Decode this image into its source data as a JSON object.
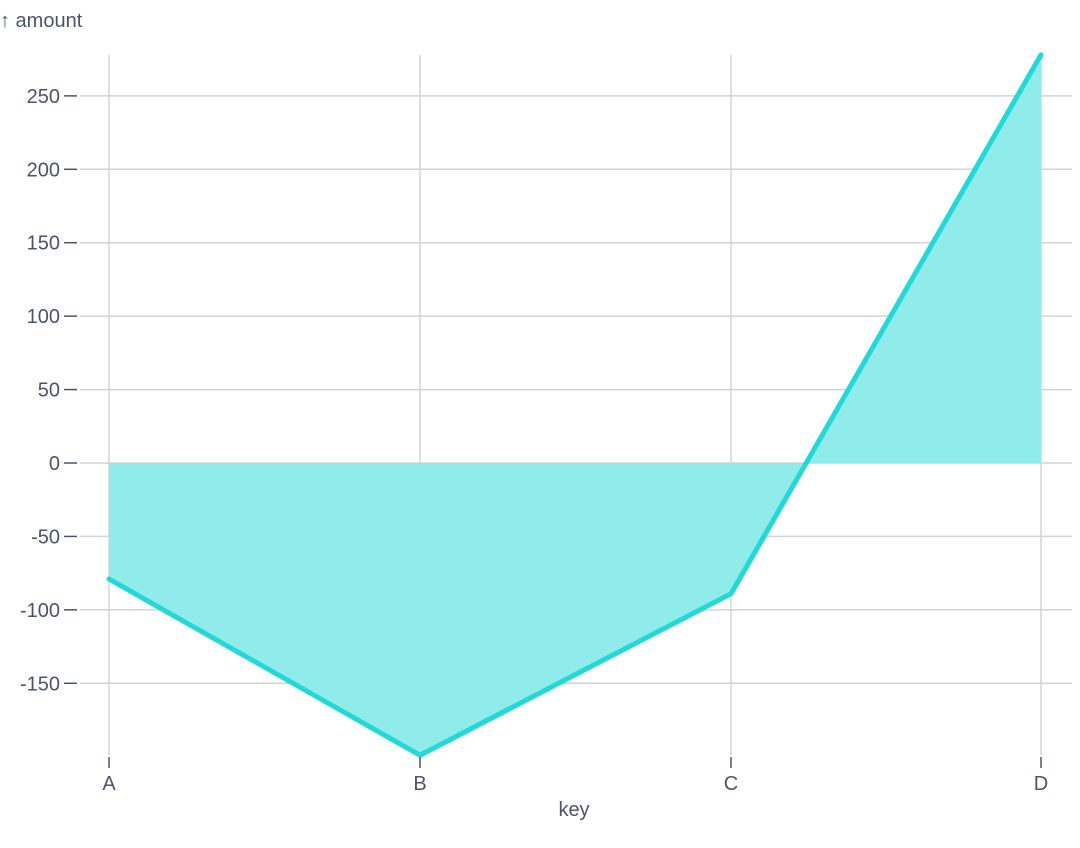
{
  "chart_data": {
    "type": "area",
    "xlabel": "key",
    "ylabel": "↑ amount",
    "categories": [
      "A",
      "B",
      "C",
      "D"
    ],
    "values": [
      -79,
      -199,
      -89,
      278
    ],
    "yticks": [
      250,
      200,
      150,
      100,
      50,
      0,
      -50,
      -100,
      -150
    ],
    "ylim": [
      -200,
      280
    ],
    "grid": true,
    "colors": {
      "line": "#25d8d8",
      "fill": "#8fecea"
    }
  }
}
